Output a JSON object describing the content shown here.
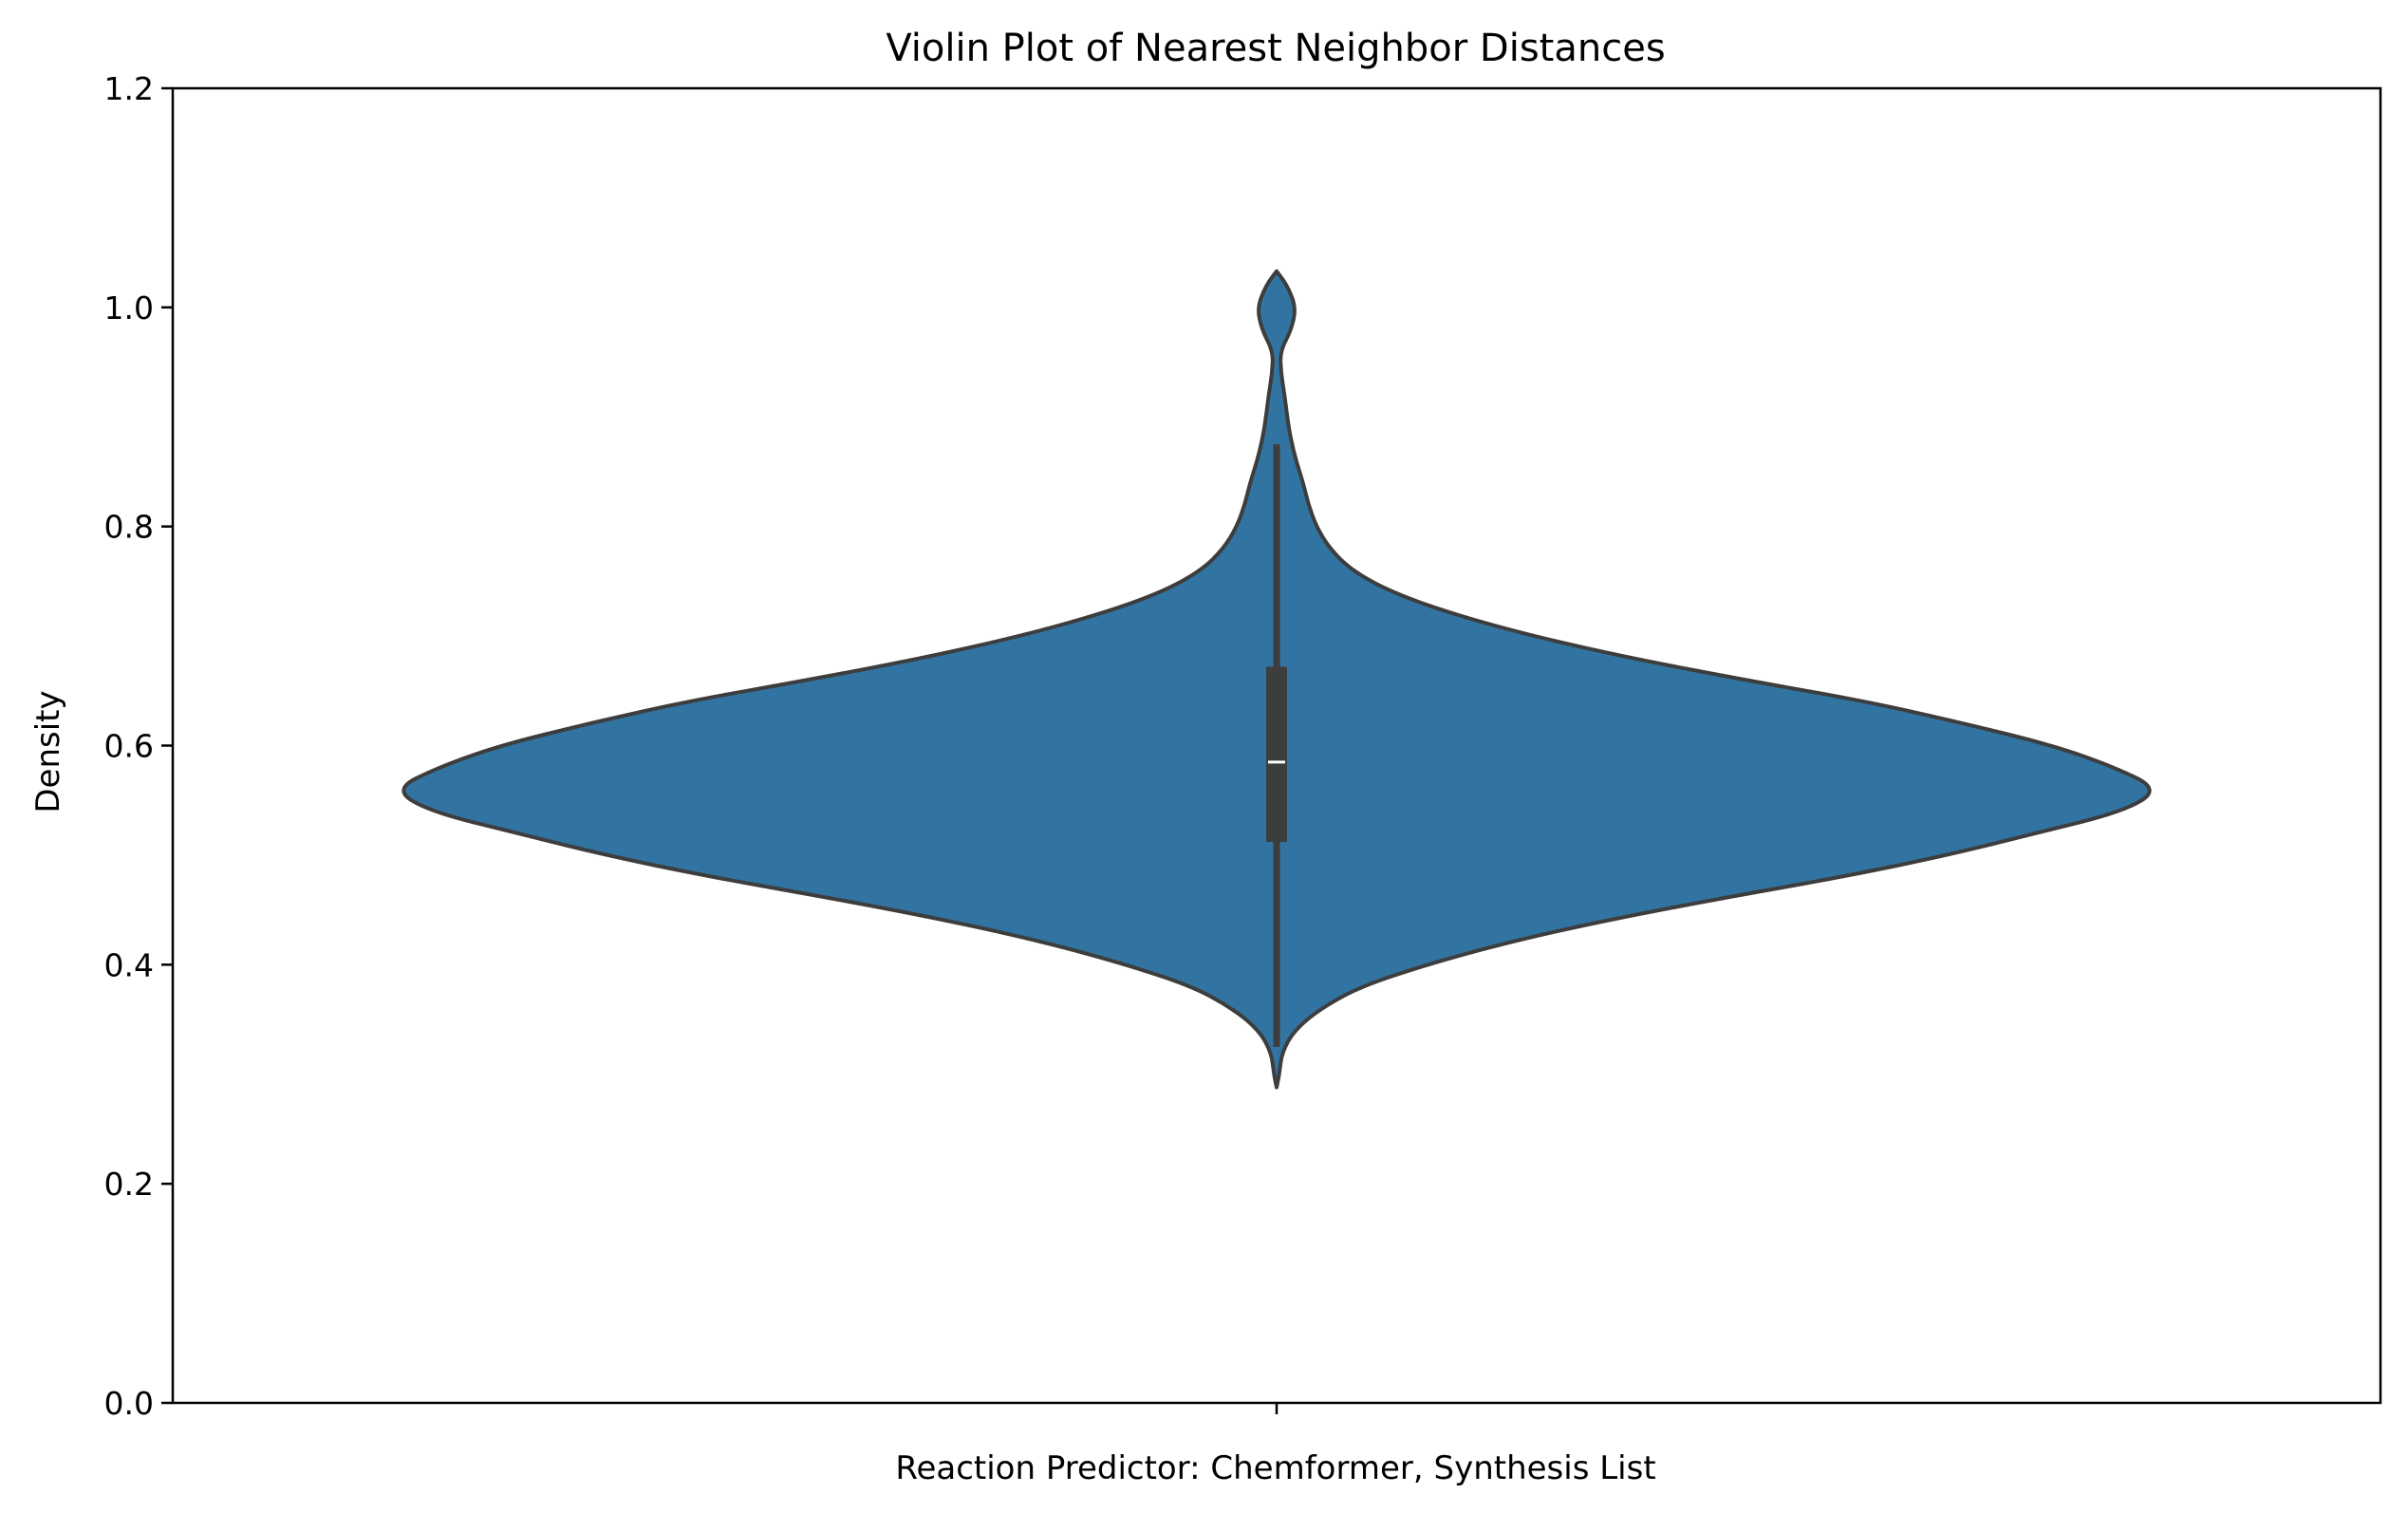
{
  "chart_data": {
    "type": "violin",
    "title": "Violin Plot of Nearest Neighbor Distances",
    "xlabel": "",
    "ylabel": "Density",
    "categories": [
      "Reaction Predictor: Chemformer, Synthesis List"
    ],
    "ylim": [
      0,
      1.2
    ],
    "yticks": [
      "0.0",
      "0.2",
      "0.4",
      "0.6",
      "0.8",
      "1.0",
      "1.2"
    ],
    "grid": false,
    "colors": {
      "fill": "#3274a1",
      "edge": "#3d3d3d",
      "box": "#3d3d3d",
      "median": "#ffffff"
    },
    "violin": {
      "profile": [
        [
          0.288,
          0.0
        ],
        [
          0.3,
          0.003
        ],
        [
          0.32,
          0.006
        ],
        [
          0.34,
          0.02
        ],
        [
          0.36,
          0.05
        ],
        [
          0.38,
          0.095
        ],
        [
          0.4,
          0.17
        ],
        [
          0.42,
          0.26
        ],
        [
          0.44,
          0.37
        ],
        [
          0.46,
          0.5
        ],
        [
          0.48,
          0.64
        ],
        [
          0.5,
          0.76
        ],
        [
          0.52,
          0.86
        ],
        [
          0.54,
          0.96
        ],
        [
          0.56,
          1.0
        ],
        [
          0.58,
          0.95
        ],
        [
          0.6,
          0.88
        ],
        [
          0.62,
          0.78
        ],
        [
          0.64,
          0.67
        ],
        [
          0.66,
          0.53
        ],
        [
          0.68,
          0.4
        ],
        [
          0.7,
          0.29
        ],
        [
          0.72,
          0.2
        ],
        [
          0.74,
          0.13
        ],
        [
          0.76,
          0.085
        ],
        [
          0.78,
          0.06
        ],
        [
          0.8,
          0.045
        ],
        [
          0.82,
          0.036
        ],
        [
          0.84,
          0.03
        ],
        [
          0.86,
          0.022
        ],
        [
          0.88,
          0.016
        ],
        [
          0.9,
          0.012
        ],
        [
          0.92,
          0.009
        ],
        [
          0.94,
          0.005
        ],
        [
          0.96,
          0.004
        ],
        [
          0.98,
          0.017
        ],
        [
          1.0,
          0.022
        ],
        [
          1.02,
          0.012
        ],
        [
          1.033,
          0.0
        ]
      ],
      "whisker_low": 0.325,
      "q1": 0.512,
      "median": 0.585,
      "q3": 0.672,
      "whisker_high": 0.875
    }
  }
}
